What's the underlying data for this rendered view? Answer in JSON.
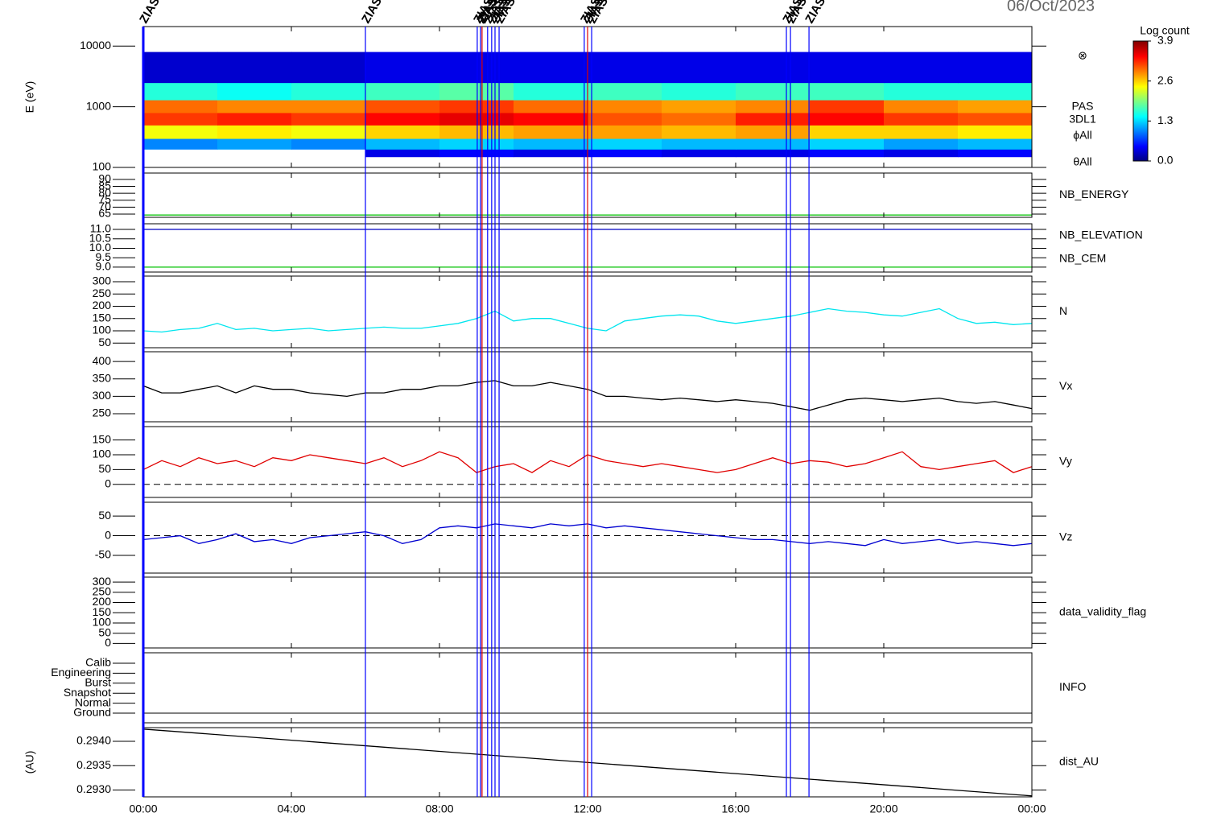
{
  "date": "06/Oct/2023",
  "events": [
    {
      "time": 0,
      "label": "ZIAS",
      "color": "#0000ff"
    },
    {
      "time": 6.0,
      "label": "ZIAS",
      "color": "#0000ff"
    },
    {
      "time": 9.02,
      "label": "ZIAS",
      "color": "#0000ff"
    },
    {
      "time": 9.11,
      "label": "ZIAS",
      "color": "#0000ff"
    },
    {
      "time": 9.15,
      "label": "ZIAS",
      "color": "#e00000"
    },
    {
      "time": 9.3,
      "label": "ZIAS",
      "color": "#0000ff"
    },
    {
      "time": 9.41,
      "label": "ZIAS",
      "color": "#0000ff"
    },
    {
      "time": 9.5,
      "label": "ZIAS",
      "color": "#0000ff"
    },
    {
      "time": 9.61,
      "label": "ZIAS",
      "color": "#0000ff"
    },
    {
      "time": 11.91,
      "label": "ZIAS",
      "color": "#0000ff"
    },
    {
      "time": 12.0,
      "label": "ZIAS",
      "color": "#e00000"
    },
    {
      "time": 12.11,
      "label": "ZIAS",
      "color": "#0000ff"
    },
    {
      "time": 17.37,
      "label": "ZIAS",
      "color": "#0000ff"
    },
    {
      "time": 17.48,
      "label": "ZIAS",
      "color": "#0000ff"
    },
    {
      "time": 17.98,
      "label": "ZIAS",
      "color": "#0000ff"
    }
  ],
  "chart_data": [
    {
      "type": "heatmap",
      "ylabel": "E (eV)",
      "log_y": true,
      "xlim": [
        0,
        24
      ],
      "ylim": [
        100,
        21000
      ],
      "yticks": [
        100,
        1000,
        10000
      ],
      "x_bins": [
        0,
        2,
        4,
        6,
        8,
        10,
        12,
        14,
        16,
        18,
        20,
        22,
        24
      ],
      "y_bins": [
        150,
        200,
        300,
        500,
        800,
        1300,
        2500,
        8000
      ],
      "values": [
        [
          null,
          null,
          null,
          0.4,
          0.5,
          0.4,
          0.5,
          0.4,
          0.4,
          0.5,
          0.4,
          0.5
        ],
        [
          1.0,
          1.1,
          1.0,
          1.2,
          1.3,
          1.2,
          1.3,
          1.2,
          1.2,
          1.3,
          1.1,
          1.2
        ],
        [
          2.4,
          2.5,
          2.4,
          2.6,
          2.7,
          2.8,
          2.8,
          2.7,
          2.8,
          2.6,
          2.6,
          2.5
        ],
        [
          3.2,
          3.3,
          3.2,
          3.4,
          3.5,
          3.4,
          3.1,
          3.0,
          3.3,
          3.4,
          3.2,
          3.1
        ],
        [
          3.0,
          2.9,
          2.9,
          3.1,
          3.2,
          3.0,
          2.9,
          2.8,
          2.9,
          3.2,
          2.9,
          2.8
        ],
        [
          1.6,
          1.5,
          1.6,
          1.7,
          1.8,
          1.6,
          1.7,
          1.6,
          1.7,
          1.7,
          1.6,
          1.6
        ],
        [
          0.3,
          0.3,
          0.3,
          0.4,
          0.4,
          0.4,
          0.4,
          0.4,
          0.4,
          0.4,
          0.4,
          0.4
        ]
      ],
      "annotations": [
        "⊗",
        "PAS",
        "3DL1",
        "ϕAll",
        "θAll"
      ],
      "colorbar_title": "Log count",
      "clim": [
        0,
        3.9
      ],
      "cticks": [
        {
          "value": 0,
          "label": "0.0"
        },
        {
          "value": 1.3,
          "label": "1.3"
        },
        {
          "value": 2.6,
          "label": "2.6"
        },
        {
          "value": 3.9,
          "label": "3.9"
        }
      ]
    },
    {
      "type": "line",
      "xlim": [
        0,
        24
      ],
      "ylim": [
        62.7,
        94.6
      ],
      "yticks": [
        65,
        70,
        75,
        80,
        85,
        90
      ],
      "series": [
        {
          "name": "NB_ENERGY",
          "color": "#00c000",
          "x": [
            0,
            24
          ],
          "values": [
            64.4,
            64.4
          ]
        }
      ]
    },
    {
      "type": "line",
      "xlim": [
        0,
        24
      ],
      "ylim": [
        8.74,
        11.3
      ],
      "yticks": [
        {
          "value": 9,
          "label": "9.0"
        },
        9.5,
        {
          "value": 10,
          "label": "10.0"
        },
        10.5,
        {
          "value": 11,
          "label": "11.0"
        }
      ],
      "series": [
        {
          "name": "NB_ELEVATION",
          "color": "#00c000",
          "x": [
            0,
            24
          ],
          "values": [
            9.0,
            9.0
          ]
        },
        {
          "name": "NB_CEM",
          "color": "#0000c0",
          "x": [
            0,
            24
          ],
          "values": [
            11.0,
            11.0
          ]
        }
      ]
    },
    {
      "type": "line",
      "xlim": [
        0,
        24
      ],
      "ylim": [
        31,
        323
      ],
      "yticks": [
        50,
        100,
        150,
        200,
        250,
        300
      ],
      "series": [
        {
          "name": "N",
          "color": "#00e5ee",
          "x": [
            0,
            0.5,
            1,
            1.5,
            2,
            2.5,
            3,
            3.5,
            4,
            4.5,
            5,
            5.5,
            6,
            6.5,
            7,
            7.5,
            8,
            8.5,
            9,
            9.5,
            10,
            10.5,
            11,
            11.5,
            12,
            12.5,
            13,
            13.5,
            14,
            14.5,
            15,
            15.5,
            16,
            16.5,
            17,
            17.5,
            18,
            18.5,
            19,
            19.5,
            20,
            20.5,
            21,
            21.5,
            22,
            22.5,
            23,
            23.5,
            24
          ],
          "values": [
            100,
            95,
            105,
            110,
            130,
            105,
            110,
            100,
            105,
            110,
            100,
            105,
            110,
            115,
            110,
            110,
            120,
            130,
            150,
            180,
            140,
            150,
            150,
            130,
            110,
            100,
            140,
            150,
            160,
            165,
            160,
            140,
            130,
            140,
            150,
            160,
            175,
            190,
            180,
            175,
            165,
            160,
            175,
            190,
            150,
            130,
            135,
            125,
            130
          ]
        }
      ]
    },
    {
      "type": "line",
      "xlim": [
        0,
        24
      ],
      "ylim": [
        227,
        428
      ],
      "yticks": [
        250,
        300,
        350,
        400
      ],
      "series": [
        {
          "name": "Vx",
          "color": "#000000",
          "x": [
            0,
            0.5,
            1,
            1.5,
            2,
            2.5,
            3,
            3.5,
            4,
            4.5,
            5,
            5.5,
            6,
            6.5,
            7,
            7.5,
            8,
            8.5,
            9,
            9.5,
            10,
            10.5,
            11,
            11.5,
            12,
            12.5,
            13,
            13.5,
            14,
            14.5,
            15,
            15.5,
            16,
            16.5,
            17,
            17.5,
            18,
            18.5,
            19,
            19.5,
            20,
            20.5,
            21,
            21.5,
            22,
            22.5,
            23,
            23.5,
            24
          ],
          "values": [
            330,
            310,
            310,
            320,
            330,
            310,
            330,
            320,
            320,
            310,
            305,
            300,
            310,
            310,
            320,
            320,
            330,
            330,
            340,
            345,
            330,
            330,
            340,
            330,
            320,
            300,
            300,
            295,
            290,
            295,
            290,
            285,
            290,
            285,
            280,
            270,
            260,
            275,
            290,
            295,
            290,
            285,
            290,
            295,
            285,
            280,
            285,
            275,
            265
          ]
        }
      ]
    },
    {
      "type": "line",
      "xlim": [
        0,
        24
      ],
      "ylim": [
        -44,
        195
      ],
      "yticks": [
        0,
        50,
        100,
        150
      ],
      "hline": 0,
      "series": [
        {
          "name": "Vy",
          "color": "#e00000",
          "x": [
            0,
            0.5,
            1,
            1.5,
            2,
            2.5,
            3,
            3.5,
            4,
            4.5,
            5,
            5.5,
            6,
            6.5,
            7,
            7.5,
            8,
            8.5,
            9,
            9.5,
            10,
            10.5,
            11,
            11.5,
            12,
            12.5,
            13,
            13.5,
            14,
            14.5,
            15,
            15.5,
            16,
            16.5,
            17,
            17.5,
            18,
            18.5,
            19,
            19.5,
            20,
            20.5,
            21,
            21.5,
            22,
            22.5,
            23,
            23.5,
            24
          ],
          "values": [
            50,
            80,
            60,
            90,
            70,
            80,
            60,
            90,
            80,
            100,
            90,
            80,
            70,
            90,
            60,
            80,
            110,
            90,
            40,
            60,
            70,
            40,
            80,
            60,
            100,
            80,
            70,
            60,
            70,
            60,
            50,
            40,
            50,
            70,
            90,
            70,
            80,
            75,
            60,
            70,
            90,
            110,
            60,
            50,
            60,
            70,
            80,
            40,
            60
          ]
        }
      ]
    },
    {
      "type": "line",
      "xlim": [
        0,
        24
      ],
      "ylim": [
        -95,
        85
      ],
      "yticks": [
        -50,
        0,
        50
      ],
      "hline": 0,
      "series": [
        {
          "name": "Vz",
          "color": "#0000d0",
          "x": [
            0,
            0.5,
            1,
            1.5,
            2,
            2.5,
            3,
            3.5,
            4,
            4.5,
            5,
            5.5,
            6,
            6.5,
            7,
            7.5,
            8,
            8.5,
            9,
            9.5,
            10,
            10.5,
            11,
            11.5,
            12,
            12.5,
            13,
            13.5,
            14,
            14.5,
            15,
            15.5,
            16,
            16.5,
            17,
            17.5,
            18,
            18.5,
            19,
            19.5,
            20,
            20.5,
            21,
            21.5,
            22,
            22.5,
            23,
            23.5,
            24
          ],
          "values": [
            -10,
            -5,
            0,
            -20,
            -10,
            5,
            -15,
            -10,
            -20,
            -5,
            0,
            5,
            10,
            0,
            -20,
            -10,
            20,
            25,
            20,
            30,
            25,
            20,
            30,
            25,
            30,
            20,
            25,
            20,
            15,
            10,
            5,
            0,
            -5,
            -10,
            -10,
            -15,
            -20,
            -15,
            -20,
            -25,
            -10,
            -20,
            -15,
            -10,
            -20,
            -15,
            -20,
            -25,
            -20
          ]
        }
      ]
    },
    {
      "type": "line",
      "xlim": [
        0,
        24
      ],
      "ylim": [
        -22,
        324
      ],
      "yticks": [
        0,
        50,
        100,
        150,
        200,
        250,
        300
      ],
      "label": "data_validity_flag",
      "series": []
    },
    {
      "type": "category",
      "xlim": [
        0,
        24
      ],
      "label": "INFO",
      "categories": [
        "Calib",
        "Engineering",
        "Burst",
        "Snapshot",
        "Normal",
        "Ground"
      ]
    },
    {
      "type": "line",
      "xlim": [
        0,
        24
      ],
      "ylim": [
        0.29286,
        0.29428
      ],
      "ylabel": "(AU)",
      "yticks": [
        {
          "value": 0.293,
          "label": "0.2930"
        },
        0.2935,
        {
          "value": 0.294,
          "label": "0.2940"
        }
      ],
      "xticks": [
        {
          "value": 0,
          "label": "00:00"
        },
        {
          "value": 4,
          "label": "04:00"
        },
        {
          "value": 8,
          "label": "08:00"
        },
        {
          "value": 12,
          "label": "12:00"
        },
        {
          "value": 16,
          "label": "16:00"
        },
        {
          "value": 20,
          "label": "20:00"
        },
        {
          "value": 24,
          "label": "00:00"
        }
      ],
      "series": [
        {
          "name": "dist_AU",
          "color": "#000000",
          "x": [
            0,
            24
          ],
          "values": [
            0.29425,
            0.29288
          ]
        }
      ]
    }
  ]
}
